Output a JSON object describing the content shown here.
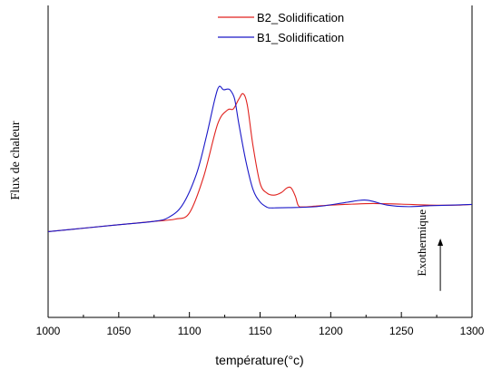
{
  "chart_data": {
    "type": "line",
    "xlabel": "température(°c)",
    "ylabel": "Flux de chaleur",
    "xlim": [
      1000,
      1300
    ],
    "xticks": [
      1000,
      1050,
      1100,
      1150,
      1200,
      1250,
      1300
    ],
    "ylim": [
      0,
      100
    ],
    "grid": false,
    "legend_position": "top-right",
    "series": [
      {
        "name": "B2_Solidification",
        "color": "#e0211d",
        "x": [
          1000,
          1025,
          1050,
          1075,
          1090,
          1100,
          1110,
          1120,
          1127,
          1131,
          1135,
          1138,
          1141,
          1145,
          1150,
          1155,
          1160,
          1165,
          1169,
          1172,
          1175,
          1177,
          1180,
          1190,
          1200,
          1215,
          1230,
          1250,
          1270,
          1290,
          1300
        ],
        "values": [
          27.5,
          28.6,
          29.7,
          30.8,
          31.5,
          33.5,
          45.0,
          62.0,
          66.5,
          66.8,
          70.0,
          71.7,
          68.0,
          55.0,
          43.0,
          39.8,
          39.2,
          40.0,
          41.5,
          41.5,
          38.8,
          35.9,
          35.4,
          35.7,
          36.0,
          36.3,
          36.5,
          36.3,
          36.0,
          36.0,
          36.2
        ]
      },
      {
        "name": "B1_Solidification",
        "color": "#1a18c8",
        "x": [
          1000,
          1025,
          1050,
          1075,
          1085,
          1095,
          1105,
          1112,
          1118,
          1121,
          1124,
          1127,
          1129,
          1132,
          1135,
          1140,
          1145,
          1150,
          1155,
          1158,
          1160,
          1170,
          1190,
          1210,
          1220,
          1225,
          1230,
          1240,
          1255,
          1270,
          1285,
          1300
        ],
        "values": [
          27.5,
          28.6,
          29.7,
          30.8,
          32.0,
          36.0,
          46.0,
          58.0,
          70.0,
          74.0,
          73.0,
          73.2,
          72.8,
          70.0,
          62.0,
          50.0,
          41.0,
          37.0,
          35.3,
          35.1,
          35.1,
          35.2,
          35.5,
          36.8,
          37.5,
          37.6,
          37.2,
          36.0,
          35.5,
          35.8,
          36.0,
          36.2
        ]
      }
    ],
    "annotations": [
      {
        "text": "Exothermique",
        "arrow": "up",
        "x": 1275,
        "y_from": 8.5,
        "y_to": 25
      }
    ]
  }
}
